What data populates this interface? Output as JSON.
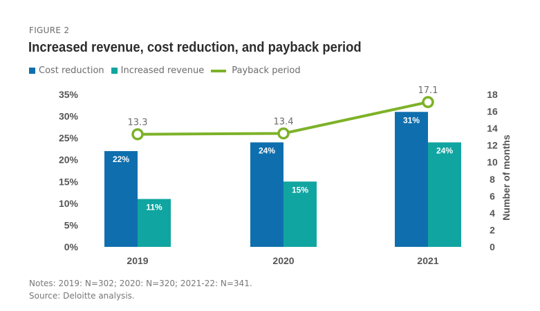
{
  "figure_label": "FIGURE 2",
  "notes": "Notes: 2019: N=302; 2020: N=320; 2021-22: N=341.",
  "source": "Source: Deloitte analysis.",
  "colors": {
    "cost_reduction": "#0f6fae",
    "increased_revenue": "#10a5a0",
    "payback_period": "#7db228",
    "axis_text": "#555555",
    "label_text": "#ffffff"
  },
  "chart_data": {
    "type": "bar",
    "title": "Increased revenue, cost reduction, and payback period",
    "categories": [
      "2019",
      "2020",
      "2021"
    ],
    "series": [
      {
        "name": "Cost reduction",
        "type": "bar",
        "axis": "left",
        "values": [
          22,
          24,
          31
        ],
        "labels": [
          "22%",
          "24%",
          "31%"
        ]
      },
      {
        "name": "Increased revenue",
        "type": "bar",
        "axis": "left",
        "values": [
          11,
          15,
          24
        ],
        "labels": [
          "11%",
          "15%",
          "24%"
        ]
      },
      {
        "name": "Payback period",
        "type": "line",
        "axis": "right",
        "values": [
          13.3,
          13.4,
          17.1
        ],
        "labels": [
          "13.3",
          "13.4",
          "17.1"
        ]
      }
    ],
    "left_axis": {
      "label": "",
      "ylim": [
        0,
        35
      ],
      "ticks": [
        "0%",
        "5%",
        "10%",
        "15%",
        "20%",
        "25%",
        "30%",
        "35%"
      ]
    },
    "right_axis": {
      "label": "Number of months",
      "ylim": [
        0,
        18
      ],
      "ticks": [
        "0",
        "2",
        "4",
        "6",
        "8",
        "10",
        "12",
        "14",
        "16",
        "18"
      ]
    },
    "xlabel": "",
    "grid": false,
    "legend": "top-left"
  }
}
